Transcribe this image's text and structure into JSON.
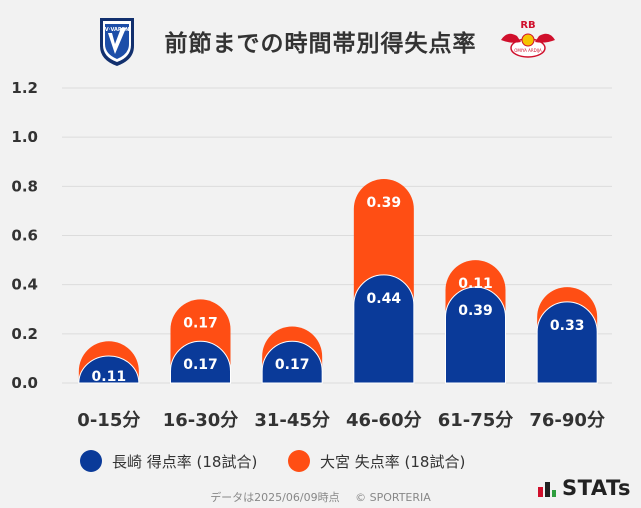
{
  "title": "前節までの時間帯別得失点率",
  "logos": {
    "left_text": "V·VAREN",
    "right_text": "RB",
    "right_subtext": "OMIYA ARDIJA"
  },
  "colors": {
    "home": "#0a3a99",
    "away": "#ff4e14",
    "grid": "#dcdcdc",
    "text": "#333333"
  },
  "legend": [
    {
      "label": "長崎 得点率 (18試合)"
    },
    {
      "label": "大宮 失点率 (18試合)"
    }
  ],
  "footer": {
    "date_note": "データは2025/06/09時点",
    "copyright": "© SPORTERIA"
  },
  "brand": "STATs",
  "chart_data": {
    "type": "bar",
    "stacked": true,
    "title": "前節までの時間帯別得失点率",
    "xlabel": "",
    "ylabel": "",
    "ylim": [
      0,
      1.2
    ],
    "yticks": [
      "0.0",
      "0.2",
      "0.4",
      "0.6",
      "0.8",
      "1.0",
      "1.2"
    ],
    "categories": [
      "0-15分",
      "16-30分",
      "31-45分",
      "46-60分",
      "61-75分",
      "76-90分"
    ],
    "series": [
      {
        "name": "長崎 得点率 (18試合)",
        "color": "#0a3a99",
        "values": [
          0.11,
          0.17,
          0.17,
          0.44,
          0.39,
          0.33
        ],
        "labels": [
          "0.11",
          "0.17",
          "0.17",
          "0.44",
          "0.39",
          "0.33"
        ]
      },
      {
        "name": "大宮 失点率 (18試合)",
        "color": "#ff4e14",
        "values": [
          0.06,
          0.17,
          0.06,
          0.39,
          0.11,
          0.06
        ],
        "labels": [
          "",
          "0.17",
          "",
          "0.39",
          "0.11",
          ""
        ]
      }
    ],
    "grid": true,
    "legend_position": "bottom"
  }
}
